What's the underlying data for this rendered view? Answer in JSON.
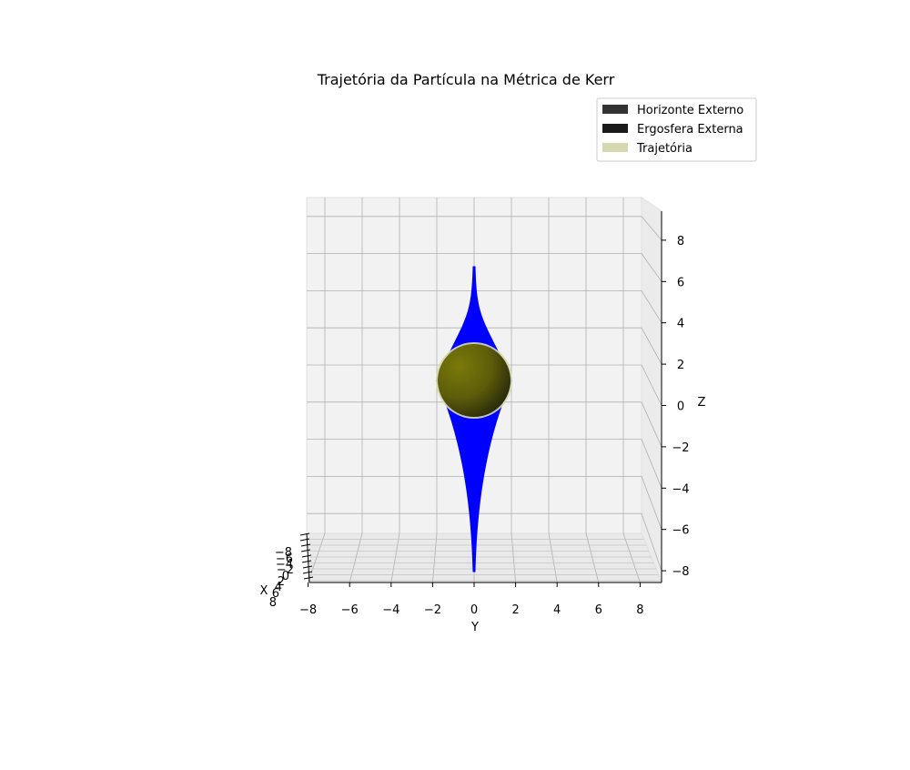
{
  "chart_data": {
    "type": "3d-surface",
    "title": "Trajetória da Partícula na Métrica de Kerr",
    "xlabel": "X",
    "ylabel": "Y",
    "zlabel": "Z",
    "xlim": [
      -9,
      9
    ],
    "ylim": [
      -9,
      9
    ],
    "zlim": [
      -9,
      9
    ],
    "x_ticks": [
      "−8",
      "−6",
      "−4",
      "−2",
      "0",
      "2",
      "4",
      "6",
      "8"
    ],
    "y_ticks": [
      "−8",
      "−6",
      "−4",
      "−2",
      "0",
      "2",
      "4",
      "6",
      "8"
    ],
    "z_ticks": [
      "−8",
      "−6",
      "−4",
      "−2",
      "0",
      "2",
      "4",
      "6",
      "8"
    ],
    "y_tick_values": [
      -8,
      -6,
      -4,
      -2,
      0,
      2,
      4,
      6,
      8
    ],
    "z_tick_values": [
      -8,
      -6,
      -4,
      -2,
      0,
      2,
      4,
      6,
      8
    ],
    "grid": true,
    "legend_position": "top-right",
    "legend": [
      {
        "label": "Horizonte Externo",
        "color": "#333333"
      },
      {
        "label": "Ergosfera Externa",
        "color": "#1a1a1a"
      },
      {
        "label": "Trajetória",
        "color": "#d6d9b0"
      }
    ],
    "surfaces": [
      {
        "name": "Horizonte Externo",
        "shape": "sphere",
        "radius": 1.8,
        "color": "#6b6b08"
      },
      {
        "name": "Trajetória",
        "shape": "spindle",
        "z_range": [
          -6.3,
          8.5
        ],
        "color": "#0000ff"
      }
    ]
  }
}
